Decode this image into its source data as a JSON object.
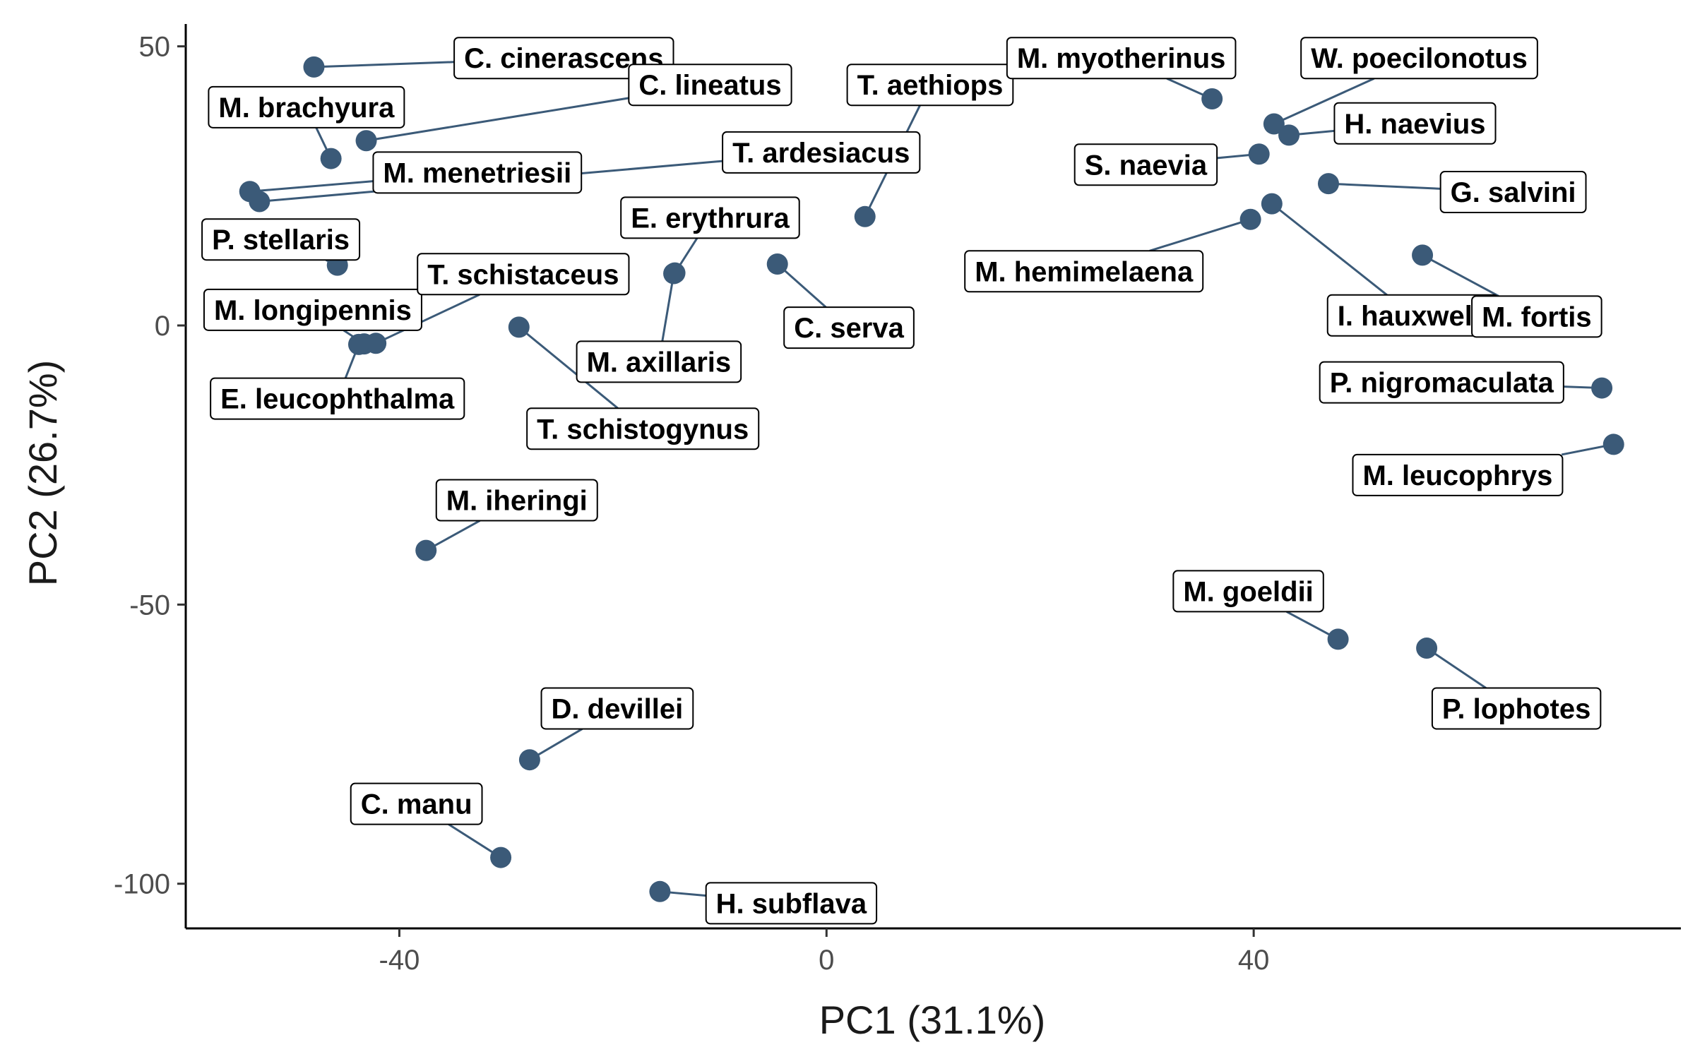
{
  "chart_data": {
    "type": "scatter",
    "title": "",
    "xlabel": "PC1 (31.1%)",
    "ylabel": "PC2 (26.7%)",
    "xlim": [
      -60,
      80
    ],
    "ylim": [
      -108,
      54
    ],
    "xticks": [
      {
        "value": -40,
        "label": "-40"
      },
      {
        "value": 0,
        "label": "0"
      },
      {
        "value": 40,
        "label": "40"
      }
    ],
    "yticks": [
      {
        "value": 50,
        "label": "50"
      },
      {
        "value": 0,
        "label": "0"
      },
      {
        "value": -50,
        "label": "-50"
      },
      {
        "value": -100,
        "label": "-100"
      }
    ],
    "grid": false,
    "point_color": "#3b5a78",
    "points": [
      {
        "label": "C. cinerascens",
        "x": -48.0,
        "y": 46.3,
        "lx": -24.6,
        "ly": 47.9
      },
      {
        "label": "C. lineatus",
        "x": -43.1,
        "y": 33.1,
        "lx": -10.9,
        "ly": 43.1
      },
      {
        "label": "M. brachyura",
        "x": -46.4,
        "y": 29.9,
        "lx": -48.7,
        "ly": 39.1
      },
      {
        "label": "M. menetriesii",
        "x": -54.0,
        "y": 24.0,
        "lx": -32.7,
        "ly": 27.4
      },
      {
        "label": "T. ardesiacus",
        "x": -53.1,
        "y": 22.2,
        "lx": -0.5,
        "ly": 31.0
      },
      {
        "label": "P. stellaris",
        "x": -45.8,
        "y": 10.8,
        "lx": -51.1,
        "ly": 15.4
      },
      {
        "label": "E. erythrura",
        "x": -14.2,
        "y": 9.4,
        "lx": -10.9,
        "ly": 19.3
      },
      {
        "label": "M. longipennis",
        "x": -43.3,
        "y": -3.3,
        "lx": -48.1,
        "ly": 2.8
      },
      {
        "label": "T. schistaceus",
        "x": -42.2,
        "y": -3.2,
        "lx": -28.4,
        "ly": 9.2
      },
      {
        "label": "E. leucophthalma",
        "x": -43.8,
        "y": -3.4,
        "lx": -45.8,
        "ly": -13.1
      },
      {
        "label": "T. schistogynus",
        "x": -28.8,
        "y": -0.3,
        "lx": -17.2,
        "ly": -18.5
      },
      {
        "label": "M. axillaris",
        "x": -14.3,
        "y": 9.3,
        "lx": -15.7,
        "ly": -6.5
      },
      {
        "label": "C. serva",
        "x": -4.6,
        "y": 11.0,
        "lx": 2.1,
        "ly": -0.4
      },
      {
        "label": "T. aethiops",
        "x": 3.6,
        "y": 19.5,
        "lx": 9.7,
        "ly": 43.1
      },
      {
        "label": "M. hemimelaena",
        "x": 39.7,
        "y": 19.0,
        "lx": 24.1,
        "ly": 9.7
      },
      {
        "label": "I. hauxwelli",
        "x": 41.7,
        "y": 21.8,
        "lx": 54.9,
        "ly": 1.8
      },
      {
        "label": "M. myotherinus",
        "x": 36.1,
        "y": 40.6,
        "lx": 27.6,
        "ly": 47.9
      },
      {
        "label": "W. poecilonotus",
        "x": 41.9,
        "y": 36.1,
        "lx": 55.5,
        "ly": 47.9
      },
      {
        "label": "H. naevius",
        "x": 43.3,
        "y": 34.1,
        "lx": 55.1,
        "ly": 36.2
      },
      {
        "label": "S. naevia",
        "x": 40.5,
        "y": 30.7,
        "lx": 29.9,
        "ly": 28.8
      },
      {
        "label": "G. salvini",
        "x": 47.0,
        "y": 25.4,
        "lx": 64.3,
        "ly": 23.9
      },
      {
        "label": "M. fortis",
        "x": 55.8,
        "y": 12.6,
        "lx": 66.5,
        "ly": 1.6
      },
      {
        "label": "P. nigromaculata",
        "x": 72.6,
        "y": -11.2,
        "lx": 57.6,
        "ly": -10.2
      },
      {
        "label": "M. leucophrys",
        "x": 73.7,
        "y": -21.3,
        "lx": 59.1,
        "ly": -26.8
      },
      {
        "label": "M. iheringi",
        "x": -37.5,
        "y": -40.3,
        "lx": -29.0,
        "ly": -31.3
      },
      {
        "label": "M. goeldii",
        "x": 47.9,
        "y": -56.2,
        "lx": 39.5,
        "ly": -47.6
      },
      {
        "label": "P. lophotes",
        "x": 56.2,
        "y": -57.8,
        "lx": 64.6,
        "ly": -68.6
      },
      {
        "label": "D. devillei",
        "x": -27.8,
        "y": -77.8,
        "lx": -19.6,
        "ly": -68.6
      },
      {
        "label": "C. manu",
        "x": -30.5,
        "y": -95.3,
        "lx": -38.4,
        "ly": -85.7
      },
      {
        "label": "H. subflava",
        "x": -15.6,
        "y": -101.4,
        "lx": -3.3,
        "ly": -103.5
      }
    ]
  }
}
